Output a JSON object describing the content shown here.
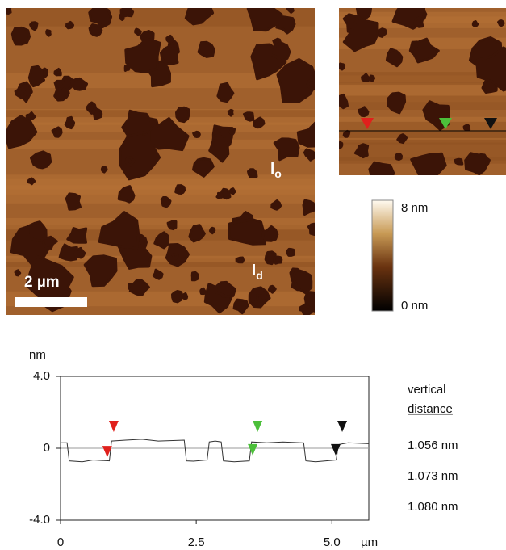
{
  "images": {
    "scale_bar": "2 µm",
    "phase_labels": [
      {
        "label": "l",
        "subscript": "o"
      },
      {
        "label": "l",
        "subscript": "d"
      }
    ],
    "colorbar": {
      "max_label": "8 nm",
      "min_label": "0 nm"
    }
  },
  "legend": {
    "title": [
      "vertical",
      "distance"
    ]
  },
  "chart_data": {
    "type": "line",
    "y_label": "nm",
    "x_unit": "µm",
    "x": [
      0,
      0.12,
      0.16,
      0.4,
      0.6,
      0.9,
      0.94,
      1.2,
      1.5,
      1.8,
      2.28,
      2.32,
      2.45,
      2.7,
      2.74,
      2.85,
      2.96,
      3.0,
      3.2,
      3.48,
      3.52,
      3.8,
      4.1,
      4.48,
      4.52,
      4.7,
      5.08,
      5.12,
      5.3,
      5.68
    ],
    "series": [
      {
        "color": "#333333",
        "values": [
          0.3,
          0.3,
          -0.7,
          -0.75,
          -0.65,
          -0.7,
          0.4,
          0.45,
          0.5,
          0.4,
          0.45,
          -0.7,
          -0.72,
          -0.65,
          0.35,
          0.4,
          0.35,
          -0.7,
          -0.75,
          -0.7,
          0.35,
          0.3,
          0.35,
          0.3,
          -0.7,
          -0.75,
          -0.65,
          0.2,
          0.3,
          0.25
        ]
      }
    ],
    "xlim": [
      0,
      5.68
    ],
    "ylim": [
      -4,
      4
    ],
    "xticks": [
      0,
      2.5,
      {
        "value": 5,
        "label": "5.0"
      }
    ],
    "yticks": [
      {
        "value": -4,
        "label": "-4.0"
      },
      0,
      {
        "value": 4,
        "label": "4.0"
      }
    ],
    "cursors": [
      {
        "color": "#e0201c",
        "x": [
          0.86,
          0.98
        ],
        "y": [
          -0.5,
          0.9
        ],
        "label": "1.056 nm"
      },
      {
        "color": "#4cbf3a",
        "x": [
          3.54,
          3.63
        ],
        "y": [
          -0.4,
          0.9
        ],
        "label": "1.073 nm"
      },
      {
        "color": "#111111",
        "x": [
          5.07,
          5.19
        ],
        "y": [
          -0.4,
          0.9
        ],
        "label": "1.080 nm"
      }
    ]
  }
}
